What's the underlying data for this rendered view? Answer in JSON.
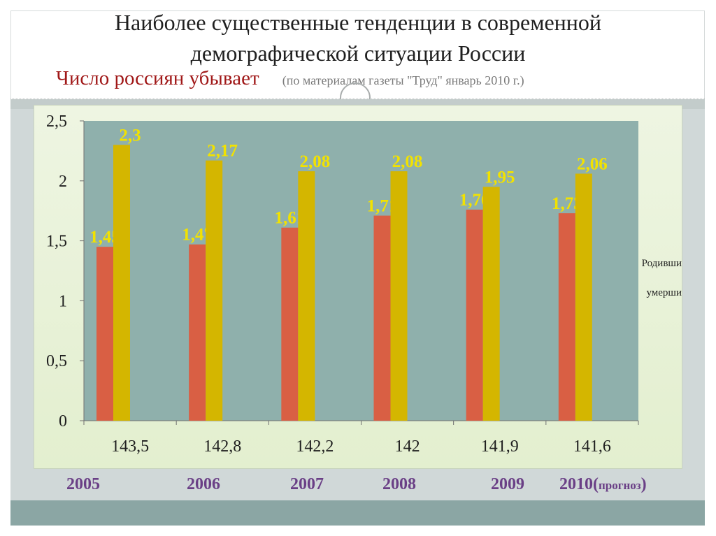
{
  "slide": {
    "title_line1": "Наиболее существенные тенденции в современной",
    "title_line2": "демографической ситуации России",
    "subtitle": "Число россиян убывает",
    "source": "(по материалам газеты \"Труд\" январь 2010 г.)"
  },
  "colors": {
    "plot_background": "#8fb0ac",
    "born_bar": "#d95f44",
    "died_bar": "#d4b600",
    "value_label": "#f2e200",
    "year_label": "#6a3f86",
    "subtitle": "#a01818"
  },
  "chart_data": {
    "type": "bar",
    "categories": [
      "143,5",
      "142,8",
      "142,2",
      "142",
      "141,9",
      "141,6"
    ],
    "series": [
      {
        "name": "Родивши",
        "values": [
          1.45,
          1.47,
          1.61,
          1.71,
          1.76,
          1.73
        ],
        "labels": [
          "1,45",
          "1,47",
          "1,61",
          "1,71",
          "1,76",
          "1,73"
        ]
      },
      {
        "name": "умерши",
        "values": [
          2.3,
          2.17,
          2.08,
          2.08,
          1.95,
          2.06
        ],
        "labels": [
          "2,3",
          "2,17",
          "2,08",
          "2,08",
          "1,95",
          "2,06"
        ]
      }
    ],
    "ylim": [
      0,
      2.5
    ],
    "yticks": [
      0,
      0.5,
      1,
      1.5,
      2,
      2.5
    ],
    "ytick_labels": [
      "0",
      "0,5",
      "1",
      "1,5",
      "2",
      "2,5"
    ],
    "grid": false,
    "legend_position": "right",
    "years": [
      "2005",
      "2006",
      "2007",
      "2008",
      "2009",
      "2010("
    ],
    "year_suffix": "прогноз",
    "year_close": ")"
  }
}
